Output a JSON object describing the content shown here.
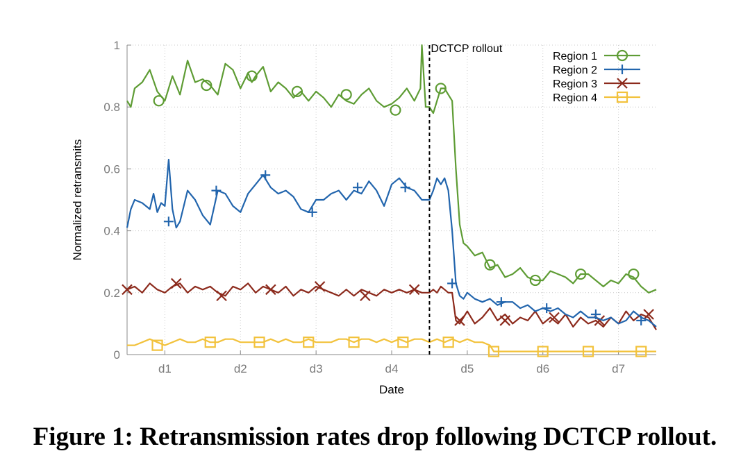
{
  "chart_data": {
    "type": "line",
    "xlabel": "Date",
    "ylabel": "Normalized retransmits",
    "xlim": [
      0.5,
      7.5
    ],
    "ylim": [
      0,
      1
    ],
    "x_ticks": [
      1,
      2,
      3,
      4,
      5,
      6,
      7
    ],
    "x_tick_labels": [
      "d1",
      "d2",
      "d3",
      "d4",
      "d5",
      "d6",
      "d7"
    ],
    "y_ticks": [
      0,
      0.2,
      0.4,
      0.6,
      0.8,
      1
    ],
    "y_tick_labels": [
      "0",
      "0.2",
      "0.4",
      "0.6",
      "0.8",
      "1"
    ],
    "grid": true,
    "legend_position": "top-right",
    "annotation": {
      "label": "DCTCP rollout",
      "x": 4.5
    },
    "series": [
      {
        "name": "Region 1",
        "color": "#5e9c34",
        "marker": "circle",
        "x": [
          0.5,
          0.55,
          0.6,
          0.7,
          0.8,
          0.9,
          1.0,
          1.1,
          1.15,
          1.2,
          1.3,
          1.4,
          1.5,
          1.6,
          1.7,
          1.8,
          1.9,
          2.0,
          2.1,
          2.15,
          2.2,
          2.3,
          2.4,
          2.5,
          2.6,
          2.7,
          2.8,
          2.9,
          3.0,
          3.1,
          3.2,
          3.3,
          3.4,
          3.5,
          3.6,
          3.7,
          3.8,
          3.9,
          4.0,
          4.1,
          4.2,
          4.3,
          4.38,
          4.4,
          4.45,
          4.5,
          4.55,
          4.6,
          4.65,
          4.7,
          4.75,
          4.8,
          4.85,
          4.9,
          4.95,
          5.0,
          5.1,
          5.2,
          5.3,
          5.4,
          5.5,
          5.6,
          5.7,
          5.8,
          5.9,
          6.0,
          6.1,
          6.2,
          6.3,
          6.4,
          6.5,
          6.6,
          6.7,
          6.8,
          6.9,
          7.0,
          7.1,
          7.2,
          7.3,
          7.4,
          7.5
        ],
        "values": [
          0.82,
          0.8,
          0.86,
          0.88,
          0.92,
          0.85,
          0.82,
          0.9,
          0.87,
          0.84,
          0.95,
          0.88,
          0.89,
          0.87,
          0.84,
          0.94,
          0.92,
          0.86,
          0.91,
          0.88,
          0.9,
          0.93,
          0.85,
          0.88,
          0.86,
          0.83,
          0.85,
          0.82,
          0.85,
          0.83,
          0.8,
          0.84,
          0.82,
          0.81,
          0.84,
          0.86,
          0.82,
          0.8,
          0.81,
          0.83,
          0.86,
          0.82,
          0.86,
          1.0,
          0.8,
          0.8,
          0.78,
          0.82,
          0.86,
          0.86,
          0.84,
          0.82,
          0.6,
          0.42,
          0.36,
          0.35,
          0.32,
          0.33,
          0.28,
          0.29,
          0.25,
          0.26,
          0.28,
          0.25,
          0.24,
          0.24,
          0.27,
          0.26,
          0.25,
          0.23,
          0.26,
          0.26,
          0.24,
          0.22,
          0.24,
          0.23,
          0.26,
          0.25,
          0.22,
          0.2,
          0.21
        ]
      },
      {
        "name": "Region 2",
        "color": "#2265ad",
        "marker": "plus",
        "x": [
          0.5,
          0.55,
          0.6,
          0.7,
          0.8,
          0.85,
          0.9,
          0.95,
          1.0,
          1.05,
          1.1,
          1.15,
          1.2,
          1.3,
          1.4,
          1.5,
          1.6,
          1.7,
          1.8,
          1.9,
          2.0,
          2.1,
          2.2,
          2.3,
          2.4,
          2.5,
          2.6,
          2.7,
          2.8,
          2.9,
          3.0,
          3.1,
          3.2,
          3.3,
          3.4,
          3.5,
          3.6,
          3.7,
          3.8,
          3.9,
          4.0,
          4.1,
          4.2,
          4.3,
          4.4,
          4.5,
          4.55,
          4.6,
          4.65,
          4.7,
          4.75,
          4.8,
          4.85,
          4.9,
          4.95,
          5.0,
          5.1,
          5.2,
          5.3,
          5.4,
          5.5,
          5.6,
          5.7,
          5.8,
          5.9,
          6.0,
          6.1,
          6.2,
          6.3,
          6.4,
          6.5,
          6.6,
          6.7,
          6.8,
          6.9,
          7.0,
          7.1,
          7.2,
          7.3,
          7.4,
          7.5
        ],
        "values": [
          0.41,
          0.47,
          0.5,
          0.49,
          0.47,
          0.52,
          0.46,
          0.49,
          0.48,
          0.63,
          0.47,
          0.41,
          0.43,
          0.53,
          0.5,
          0.45,
          0.42,
          0.53,
          0.52,
          0.48,
          0.46,
          0.52,
          0.55,
          0.58,
          0.54,
          0.52,
          0.53,
          0.51,
          0.47,
          0.46,
          0.5,
          0.5,
          0.52,
          0.53,
          0.5,
          0.53,
          0.52,
          0.56,
          0.53,
          0.48,
          0.55,
          0.57,
          0.54,
          0.53,
          0.5,
          0.5,
          0.53,
          0.57,
          0.55,
          0.57,
          0.53,
          0.4,
          0.23,
          0.19,
          0.18,
          0.2,
          0.18,
          0.17,
          0.18,
          0.16,
          0.17,
          0.17,
          0.15,
          0.16,
          0.14,
          0.15,
          0.14,
          0.15,
          0.13,
          0.12,
          0.14,
          0.12,
          0.12,
          0.11,
          0.12,
          0.1,
          0.11,
          0.14,
          0.12,
          0.11,
          0.09
        ]
      },
      {
        "name": "Region 3",
        "color": "#8c2a1c",
        "marker": "x",
        "x": [
          0.5,
          0.6,
          0.7,
          0.8,
          0.9,
          1.0,
          1.1,
          1.2,
          1.3,
          1.4,
          1.5,
          1.6,
          1.7,
          1.8,
          1.9,
          2.0,
          2.1,
          2.2,
          2.3,
          2.4,
          2.5,
          2.6,
          2.7,
          2.8,
          2.9,
          3.0,
          3.1,
          3.2,
          3.3,
          3.4,
          3.5,
          3.6,
          3.7,
          3.8,
          3.9,
          4.0,
          4.1,
          4.2,
          4.3,
          4.4,
          4.5,
          4.55,
          4.6,
          4.65,
          4.7,
          4.75,
          4.8,
          4.85,
          4.9,
          4.95,
          5.0,
          5.1,
          5.2,
          5.3,
          5.4,
          5.5,
          5.6,
          5.7,
          5.8,
          5.9,
          6.0,
          6.1,
          6.2,
          6.3,
          6.4,
          6.5,
          6.6,
          6.7,
          6.8,
          6.9,
          7.0,
          7.1,
          7.2,
          7.3,
          7.4,
          7.5
        ],
        "values": [
          0.21,
          0.22,
          0.2,
          0.23,
          0.21,
          0.2,
          0.22,
          0.23,
          0.2,
          0.22,
          0.21,
          0.22,
          0.2,
          0.19,
          0.22,
          0.21,
          0.23,
          0.2,
          0.22,
          0.21,
          0.2,
          0.22,
          0.19,
          0.21,
          0.2,
          0.22,
          0.21,
          0.2,
          0.19,
          0.21,
          0.19,
          0.21,
          0.2,
          0.19,
          0.21,
          0.2,
          0.21,
          0.2,
          0.21,
          0.2,
          0.2,
          0.21,
          0.2,
          0.22,
          0.21,
          0.2,
          0.2,
          0.11,
          0.1,
          0.12,
          0.14,
          0.1,
          0.12,
          0.15,
          0.11,
          0.13,
          0.1,
          0.12,
          0.11,
          0.14,
          0.1,
          0.12,
          0.1,
          0.13,
          0.09,
          0.12,
          0.1,
          0.11,
          0.09,
          0.12,
          0.1,
          0.14,
          0.11,
          0.13,
          0.12,
          0.08
        ]
      },
      {
        "name": "Region 4",
        "color": "#f2c23c",
        "marker": "square",
        "x": [
          0.5,
          0.6,
          0.7,
          0.8,
          0.9,
          1.0,
          1.1,
          1.2,
          1.3,
          1.4,
          1.5,
          1.6,
          1.7,
          1.8,
          1.9,
          2.0,
          2.1,
          2.2,
          2.3,
          2.4,
          2.5,
          2.6,
          2.7,
          2.8,
          2.9,
          3.0,
          3.1,
          3.2,
          3.3,
          3.4,
          3.5,
          3.6,
          3.7,
          3.8,
          3.9,
          4.0,
          4.1,
          4.2,
          4.3,
          4.4,
          4.5,
          4.6,
          4.7,
          4.8,
          4.9,
          5.0,
          5.1,
          5.2,
          5.3,
          5.35,
          5.4,
          5.5,
          5.6,
          5.7,
          5.8,
          5.9,
          6.0,
          6.1,
          6.2,
          6.3,
          6.4,
          6.5,
          6.6,
          6.7,
          6.8,
          6.9,
          7.0,
          7.1,
          7.2,
          7.3,
          7.4,
          7.5
        ],
        "values": [
          0.03,
          0.03,
          0.04,
          0.05,
          0.04,
          0.03,
          0.04,
          0.05,
          0.04,
          0.04,
          0.05,
          0.04,
          0.04,
          0.05,
          0.05,
          0.04,
          0.04,
          0.04,
          0.04,
          0.05,
          0.04,
          0.05,
          0.04,
          0.04,
          0.05,
          0.04,
          0.04,
          0.04,
          0.05,
          0.05,
          0.04,
          0.05,
          0.05,
          0.04,
          0.05,
          0.04,
          0.05,
          0.04,
          0.05,
          0.05,
          0.04,
          0.05,
          0.04,
          0.05,
          0.04,
          0.05,
          0.04,
          0.04,
          0.03,
          0.01,
          0.01,
          0.01,
          0.01,
          0.01,
          0.01,
          0.01,
          0.01,
          0.01,
          0.01,
          0.01,
          0.01,
          0.01,
          0.01,
          0.01,
          0.01,
          0.01,
          0.01,
          0.01,
          0.01,
          0.01,
          0.01,
          0.01
        ],
        "marker_x": [
          0.9,
          1.6,
          2.25,
          2.9,
          3.5,
          4.15,
          4.75,
          5.35,
          6.0,
          6.6,
          7.3
        ],
        "marker_values": [
          0.03,
          0.04,
          0.04,
          0.04,
          0.04,
          0.04,
          0.04,
          0.01,
          0.01,
          0.01,
          0.01
        ]
      }
    ],
    "series_markers": {
      "Region 1": {
        "x": [
          0.92,
          1.55,
          2.15,
          2.75,
          3.4,
          4.05,
          4.65,
          5.3,
          5.9,
          6.5,
          7.2
        ],
        "values": [
          0.82,
          0.87,
          0.9,
          0.85,
          0.84,
          0.79,
          0.86,
          0.29,
          0.24,
          0.26,
          0.26
        ]
      },
      "Region 2": {
        "x": [
          1.05,
          1.68,
          2.33,
          2.95,
          3.55,
          4.18,
          4.8,
          5.45,
          6.05,
          6.7,
          7.3
        ],
        "values": [
          0.43,
          0.53,
          0.58,
          0.46,
          0.54,
          0.54,
          0.23,
          0.17,
          0.15,
          0.13,
          0.11
        ]
      },
      "Region 3": {
        "x": [
          0.5,
          1.15,
          1.75,
          2.4,
          3.05,
          3.65,
          4.3,
          4.9,
          5.5,
          6.15,
          6.75,
          7.4
        ],
        "values": [
          0.21,
          0.23,
          0.19,
          0.21,
          0.22,
          0.19,
          0.21,
          0.11,
          0.11,
          0.12,
          0.11,
          0.13
        ]
      }
    }
  },
  "caption": {
    "prefix": "Figure 1:",
    "text": " Retransmission rates drop following DCTCP rollout."
  }
}
